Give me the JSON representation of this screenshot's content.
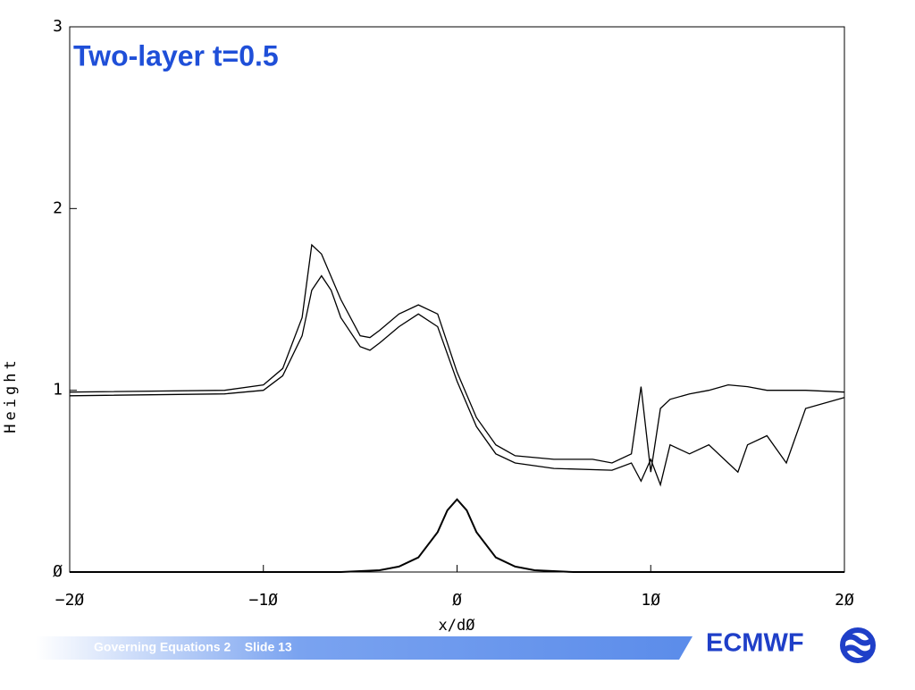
{
  "chart_data": {
    "type": "line",
    "title": "Two-layer t=0.5",
    "x_label": "x/dØ",
    "y_label": "Height",
    "xlim": [
      -20,
      20
    ],
    "ylim": [
      0,
      3
    ],
    "xticks": [
      {
        "value": -20,
        "label": "−2Ø"
      },
      {
        "value": -10,
        "label": "−1Ø"
      },
      {
        "value": 0,
        "label": "Ø"
      },
      {
        "value": 10,
        "label": "1Ø"
      },
      {
        "value": 20,
        "label": "2Ø"
      }
    ],
    "yticks": [
      {
        "value": 0,
        "label": "Ø"
      },
      1,
      2,
      3
    ],
    "series": [
      {
        "color": "#000000",
        "x": [
          -20,
          -6,
          -4,
          -3,
          -2,
          -1,
          -0.5,
          0,
          0.5,
          1,
          2,
          3,
          4,
          6,
          20
        ],
        "values": [
          0,
          0,
          0.01,
          0.03,
          0.08,
          0.22,
          0.34,
          0.4,
          0.34,
          0.22,
          0.08,
          0.03,
          0.01,
          0,
          0
        ]
      },
      {
        "color": "#000000",
        "x": [
          -20,
          -12,
          -10,
          -9,
          -8,
          -7.5,
          -7,
          -6.5,
          -6,
          -5,
          -4.5,
          -4,
          -3,
          -2,
          -1,
          0,
          1,
          2,
          3,
          5,
          8,
          9,
          9.5,
          10,
          10.5,
          11,
          12,
          13,
          14,
          14.5,
          15,
          16,
          17,
          18,
          20
        ],
        "values": [
          0.97,
          0.98,
          1.0,
          1.08,
          1.3,
          1.55,
          1.63,
          1.55,
          1.4,
          1.24,
          1.22,
          1.26,
          1.35,
          1.42,
          1.35,
          1.05,
          0.8,
          0.65,
          0.6,
          0.57,
          0.56,
          0.6,
          0.5,
          0.62,
          0.48,
          0.7,
          0.65,
          0.7,
          0.6,
          0.55,
          0.7,
          0.75,
          0.6,
          0.9,
          0.96
        ]
      },
      {
        "color": "#000000",
        "x": [
          -20,
          -12,
          -10,
          -9,
          -8,
          -7.5,
          -7,
          -6,
          -5,
          -4.5,
          -4,
          -3,
          -2,
          -1,
          0,
          1,
          2,
          3,
          5,
          7,
          8,
          9,
          9.5,
          10,
          10.5,
          11,
          12,
          13,
          14,
          15,
          16,
          18,
          20
        ],
        "values": [
          0.99,
          1.0,
          1.03,
          1.12,
          1.4,
          1.8,
          1.75,
          1.5,
          1.3,
          1.29,
          1.33,
          1.42,
          1.47,
          1.42,
          1.1,
          0.85,
          0.7,
          0.64,
          0.62,
          0.62,
          0.6,
          0.65,
          1.02,
          0.55,
          0.9,
          0.95,
          0.98,
          1.0,
          1.03,
          1.02,
          1.0,
          1.0,
          0.99
        ]
      }
    ]
  },
  "footer": {
    "text": "Governing Equations 2    Slide 13",
    "logo": "ECMWF"
  }
}
